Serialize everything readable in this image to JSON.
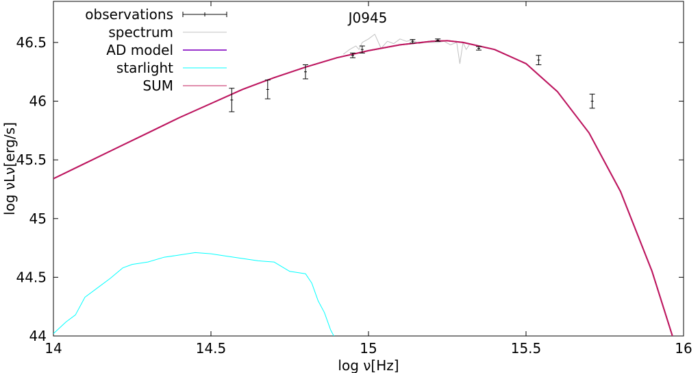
{
  "chart_data": {
    "type": "line",
    "title": "J0945",
    "xlabel": "log ν[Hz]",
    "ylabel": "log νLν[erg/s]",
    "xlim": [
      14,
      16
    ],
    "ylim": [
      44,
      46.85
    ],
    "x_ticks": [
      "14",
      "14.5",
      "15",
      "15.5",
      "16"
    ],
    "y_ticks": [
      "44",
      "44.5",
      "45",
      "45.5",
      "46",
      "46.5"
    ],
    "legend_position": "top-left",
    "grid": false,
    "series": [
      {
        "name": "observations",
        "kind": "errorbar",
        "color": "#000000",
        "points": [
          {
            "x": 14.566,
            "y": 46.01,
            "err": 0.1
          },
          {
            "x": 14.68,
            "y": 46.1,
            "err": 0.08
          },
          {
            "x": 14.8,
            "y": 46.25,
            "err": 0.06
          },
          {
            "x": 14.95,
            "y": 46.39,
            "err": 0.02
          },
          {
            "x": 14.98,
            "y": 46.44,
            "err": 0.03
          },
          {
            "x": 15.14,
            "y": 46.51,
            "err": 0.015
          },
          {
            "x": 15.22,
            "y": 46.52,
            "err": 0.01
          },
          {
            "x": 15.35,
            "y": 46.45,
            "err": 0.015
          },
          {
            "x": 15.54,
            "y": 46.35,
            "err": 0.04
          },
          {
            "x": 15.71,
            "y": 46.0,
            "err": 0.06
          }
        ]
      },
      {
        "name": "spectrum",
        "kind": "line",
        "color": "#c0c0c0",
        "x": [
          14.92,
          14.94,
          14.96,
          14.97,
          14.98,
          15.0,
          15.02,
          15.04,
          15.06,
          15.08,
          15.1,
          15.12,
          15.14,
          15.16,
          15.18,
          15.2,
          15.22,
          15.24,
          15.26,
          15.28,
          15.29,
          15.3,
          15.31,
          15.32
        ],
        "y": [
          46.4,
          46.44,
          46.47,
          46.44,
          46.5,
          46.53,
          46.57,
          46.45,
          46.51,
          46.49,
          46.53,
          46.51,
          46.52,
          46.49,
          46.5,
          46.5,
          46.5,
          46.51,
          46.48,
          46.5,
          46.32,
          46.5,
          46.44,
          46.48
        ]
      },
      {
        "name": "AD model",
        "kind": "line",
        "color": "#9933cc",
        "x": [
          14,
          14.1,
          14.2,
          14.3,
          14.4,
          14.5,
          14.6,
          14.7,
          14.8,
          14.9,
          15,
          15.1,
          15.2,
          15.25,
          15.3,
          15.4,
          15.5,
          15.6,
          15.7,
          15.8,
          15.9,
          16
        ],
        "y": [
          45.34,
          45.47,
          45.6,
          45.73,
          45.86,
          45.98,
          46.1,
          46.2,
          46.29,
          46.37,
          46.43,
          46.48,
          46.51,
          46.515,
          46.5,
          46.44,
          46.32,
          46.08,
          45.73,
          45.23,
          44.55,
          43.7
        ]
      },
      {
        "name": "starlight",
        "kind": "line",
        "color": "#00ffff",
        "x": [
          14.0,
          14.04,
          14.07,
          14.1,
          14.14,
          14.18,
          14.22,
          14.25,
          14.3,
          14.35,
          14.4,
          14.45,
          14.5,
          14.55,
          14.6,
          14.65,
          14.7,
          14.75,
          14.8,
          14.82,
          14.84,
          14.86,
          14.88,
          14.9,
          14.92
        ],
        "y": [
          44.02,
          44.12,
          44.18,
          44.33,
          44.41,
          44.49,
          44.58,
          44.61,
          44.63,
          44.67,
          44.69,
          44.71,
          44.7,
          44.68,
          44.66,
          44.64,
          44.63,
          44.55,
          44.53,
          44.45,
          44.3,
          44.2,
          44.05,
          43.95,
          43.9
        ]
      },
      {
        "name": "SUM",
        "kind": "line",
        "color": "#c0185a",
        "x": [
          14,
          14.1,
          14.2,
          14.3,
          14.4,
          14.5,
          14.6,
          14.7,
          14.8,
          14.9,
          15,
          15.1,
          15.2,
          15.25,
          15.3,
          15.4,
          15.5,
          15.6,
          15.7,
          15.8,
          15.9,
          16
        ],
        "y": [
          45.34,
          45.47,
          45.6,
          45.73,
          45.86,
          45.98,
          46.1,
          46.2,
          46.29,
          46.37,
          46.43,
          46.48,
          46.51,
          46.515,
          46.5,
          46.44,
          46.32,
          46.08,
          45.73,
          45.23,
          44.55,
          43.7
        ]
      }
    ]
  }
}
